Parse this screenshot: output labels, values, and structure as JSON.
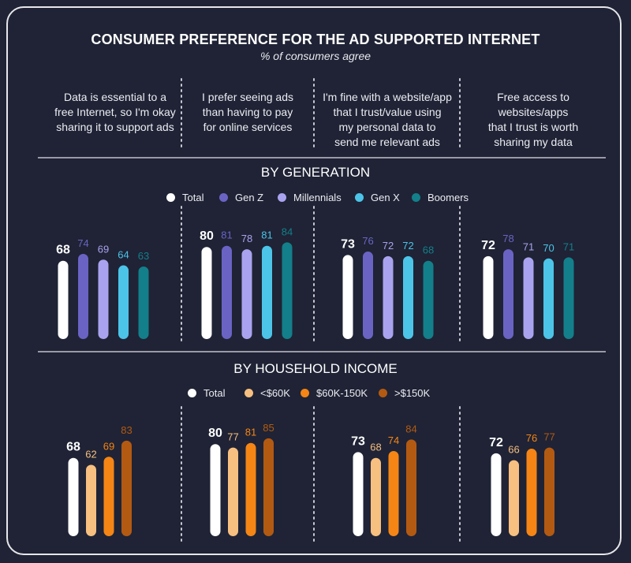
{
  "title": "CONSUMER PREFERENCE FOR THE AD SUPPORTED INTERNET",
  "subtitle": "% of consumers agree",
  "statements": [
    "Data is essential to a free Internet, so I'm okay sharing it to support ads",
    "I prefer seeing ads than having to pay for online services",
    "I'm fine with a website/app that I trust/value using my personal data to send me relevant ads",
    "Free access to websites/apps that I trust is worth sharing my data"
  ],
  "statement_lines": [
    [
      "Data is essential to a",
      "free Internet, so I'm okay",
      "sharing it to support ads"
    ],
    [
      "I prefer seeing ads",
      "than having to pay",
      "for online services"
    ],
    [
      "I'm fine with a website/app",
      "that I trust/value using",
      "my personal data to",
      "send me relevant ads"
    ],
    [
      "Free access to",
      "websites/apps",
      "that I trust is worth",
      "sharing my data"
    ]
  ],
  "chart_data": [
    {
      "type": "bar",
      "title": "BY GENERATION",
      "categories": [
        "Data is essential to a free Internet, so I'm okay sharing it to support ads",
        "I prefer seeing ads than having to pay for online services",
        "I'm fine with a website/app that I trust/value using my personal data to send me relevant ads",
        "Free access to websites/apps that I trust is worth sharing my data"
      ],
      "series": [
        {
          "name": "Total",
          "color": "#ffffff",
          "values": [
            68,
            80,
            73,
            72
          ]
        },
        {
          "name": "Gen Z",
          "color": "#6b63c4",
          "values": [
            74,
            81,
            76,
            78
          ]
        },
        {
          "name": "Millennials",
          "color": "#a9a3ef",
          "values": [
            69,
            78,
            72,
            71
          ]
        },
        {
          "name": "Gen X",
          "color": "#4cc4e8",
          "values": [
            64,
            81,
            72,
            70
          ]
        },
        {
          "name": "Boomers",
          "color": "#137f8a",
          "values": [
            63,
            84,
            68,
            71
          ]
        }
      ],
      "ylim": [
        0,
        100
      ],
      "legend": "top"
    },
    {
      "type": "bar",
      "title": "BY HOUSEHOLD INCOME",
      "categories": [
        "Data is essential to a free Internet, so I'm okay sharing it to support ads",
        "I prefer seeing ads than having to pay for online services",
        "I'm fine with a website/app that I trust/value using my personal data to send me relevant ads",
        "Free access to websites/apps that I trust is worth sharing my data"
      ],
      "series": [
        {
          "name": "Total",
          "color": "#ffffff",
          "values": [
            68,
            80,
            73,
            72
          ]
        },
        {
          "name": "<$60K",
          "color": "#f7bf80",
          "values": [
            62,
            77,
            68,
            66
          ]
        },
        {
          "name": "$60K-150K",
          "color": "#f58515",
          "values": [
            69,
            81,
            74,
            76
          ]
        },
        {
          "name": ">$150K",
          "color": "#b35a12",
          "values": [
            83,
            85,
            84,
            77
          ]
        }
      ],
      "ylim": [
        0,
        100
      ],
      "legend": "top"
    }
  ]
}
